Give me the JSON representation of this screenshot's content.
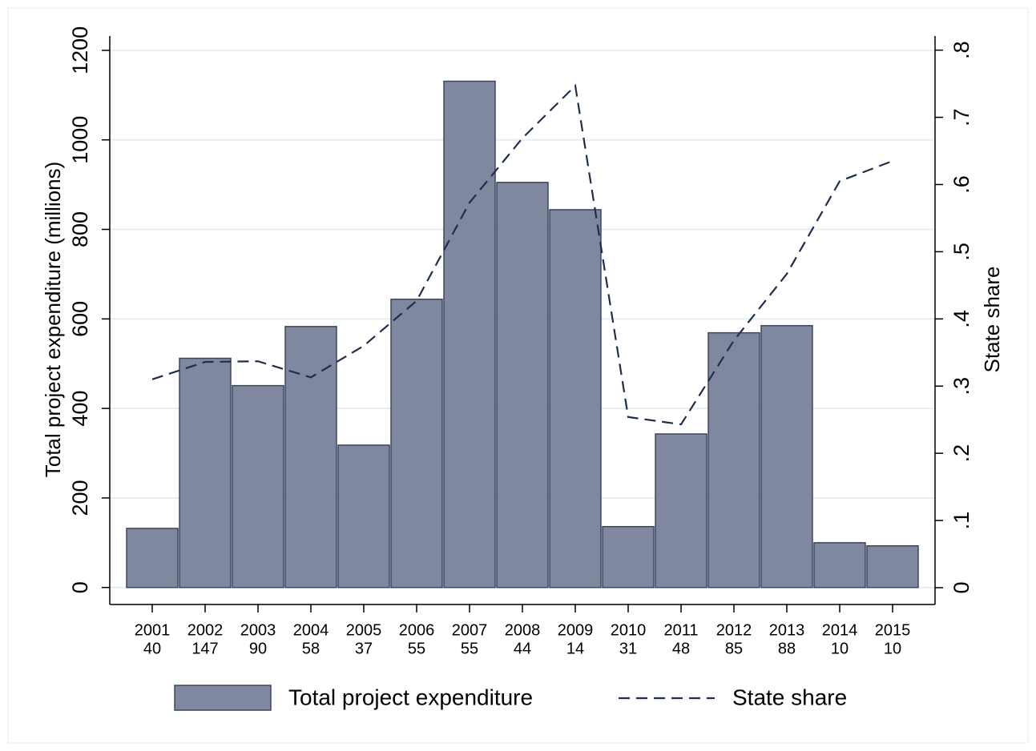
{
  "chart_data": {
    "type": "bar",
    "categories": [
      [
        "2001",
        "40"
      ],
      [
        "2002",
        "147"
      ],
      [
        "2003",
        "90"
      ],
      [
        "2004",
        "58"
      ],
      [
        "2005",
        "37"
      ],
      [
        "2006",
        "55"
      ],
      [
        "2007",
        "55"
      ],
      [
        "2008",
        "44"
      ],
      [
        "2009",
        "14"
      ],
      [
        "2010",
        "31"
      ],
      [
        "2011",
        "48"
      ],
      [
        "2012",
        "85"
      ],
      [
        "2013",
        "88"
      ],
      [
        "2014",
        "10"
      ],
      [
        "2015",
        "10"
      ]
    ],
    "y_label": "Total project expenditure (millions)",
    "y2_label": "State share",
    "series": [
      {
        "name": "Total project expenditure",
        "type": "bar",
        "color": "#7f889e",
        "values": [
          132,
          512,
          451,
          583,
          318,
          644,
          1131,
          905,
          844,
          136,
          343,
          569,
          585,
          100,
          93
        ]
      },
      {
        "name": "State share",
        "type": "line",
        "axis": "y2",
        "color": "#1f2d4e",
        "values": [
          0.31,
          0.336,
          0.337,
          0.313,
          0.36,
          0.427,
          0.573,
          0.669,
          0.747,
          0.254,
          0.243,
          0.368,
          0.467,
          0.605,
          0.635
        ]
      }
    ],
    "ylim": [
      -38,
      1232
    ],
    "yticks": [
      0,
      200,
      400,
      600,
      800,
      1000,
      1200
    ],
    "y2lim": [
      -0.025,
      0.821
    ],
    "y2ticks": [
      0,
      {
        "value": 0.1,
        "label": ".1"
      },
      {
        "value": 0.2,
        "label": ".2"
      },
      {
        "value": 0.3,
        "label": ".3"
      },
      {
        "value": 0.4,
        "label": ".4"
      },
      {
        "value": 0.5,
        "label": ".5"
      },
      {
        "value": 0.6,
        "label": ".6"
      },
      {
        "value": 0.7,
        "label": ".7"
      },
      {
        "value": 0.8,
        "label": ".8"
      }
    ],
    "grid": true
  }
}
